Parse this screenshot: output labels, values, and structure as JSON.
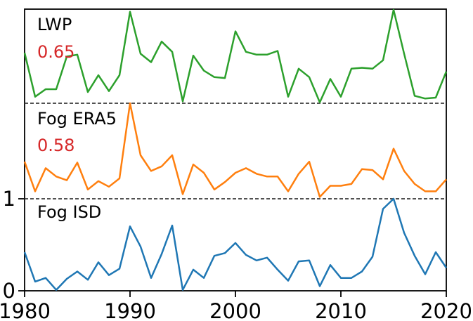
{
  "chart_data": {
    "type": "line",
    "title": "",
    "xlabel": "",
    "ylabel": "",
    "x_range": [
      1980,
      2020
    ],
    "x": [
      1980,
      1981,
      1982,
      1983,
      1984,
      1985,
      1986,
      1987,
      1988,
      1989,
      1990,
      1991,
      1992,
      1993,
      1994,
      1995,
      1996,
      1997,
      1998,
      1999,
      2000,
      2001,
      2002,
      2003,
      2004,
      2005,
      2006,
      2007,
      2008,
      2009,
      2010,
      2011,
      2012,
      2013,
      2014,
      2015,
      2016,
      2017,
      2018,
      2019,
      2020
    ],
    "xticks": [
      1980,
      1990,
      2000,
      2010,
      2020
    ],
    "yticks": [
      {
        "value": 0,
        "label": "0"
      },
      {
        "value": 1,
        "label": "1"
      }
    ],
    "grid": false,
    "legend_position": "in-panel text labels",
    "layout": "three vertically stacked normalized time series separated by dashed lines",
    "separator_line_values": [
      1,
      2
    ],
    "panels": [
      {
        "label": "LWP",
        "corr": "0.65",
        "color": "#2ca02c",
        "values_normalized_0_to_1": [
          0.54,
          0.07,
          0.15,
          0.15,
          0.5,
          0.52,
          0.12,
          0.3,
          0.13,
          0.3,
          0.98,
          0.53,
          0.44,
          0.66,
          0.55,
          0.02,
          0.51,
          0.35,
          0.28,
          0.27,
          0.77,
          0.55,
          0.52,
          0.52,
          0.56,
          0.07,
          0.37,
          0.28,
          0.01,
          0.26,
          0.07,
          0.37,
          0.38,
          0.37,
          0.46,
          1.0,
          0.53,
          0.08,
          0.05,
          0.06,
          0.34
        ]
      },
      {
        "label": "Fog ERA5",
        "corr": "0.58",
        "color": "#ff7f0e",
        "values_normalized_0_to_1": [
          0.4,
          0.08,
          0.33,
          0.24,
          0.2,
          0.39,
          0.1,
          0.19,
          0.13,
          0.22,
          1.03,
          0.47,
          0.3,
          0.35,
          0.47,
          0.05,
          0.37,
          0.28,
          0.1,
          0.18,
          0.28,
          0.33,
          0.27,
          0.24,
          0.24,
          0.08,
          0.27,
          0.4,
          0.02,
          0.14,
          0.14,
          0.16,
          0.32,
          0.31,
          0.21,
          0.54,
          0.3,
          0.16,
          0.08,
          0.08,
          0.21
        ]
      },
      {
        "label": "Fog ISD",
        "corr": "",
        "color": "#1f77b4",
        "values_normalized_0_to_1": [
          0.42,
          0.1,
          0.14,
          0.01,
          0.13,
          0.21,
          0.12,
          0.31,
          0.17,
          0.24,
          0.7,
          0.48,
          0.14,
          0.4,
          0.71,
          0.01,
          0.23,
          0.14,
          0.38,
          0.41,
          0.52,
          0.39,
          0.33,
          0.36,
          0.23,
          0.11,
          0.32,
          0.33,
          0.05,
          0.28,
          0.14,
          0.14,
          0.21,
          0.37,
          0.89,
          1.0,
          0.63,
          0.38,
          0.18,
          0.42,
          0.25
        ]
      }
    ],
    "annotation_color": "#d62728",
    "axis_color": "#000000",
    "separator_color": "#3a3a3a"
  }
}
